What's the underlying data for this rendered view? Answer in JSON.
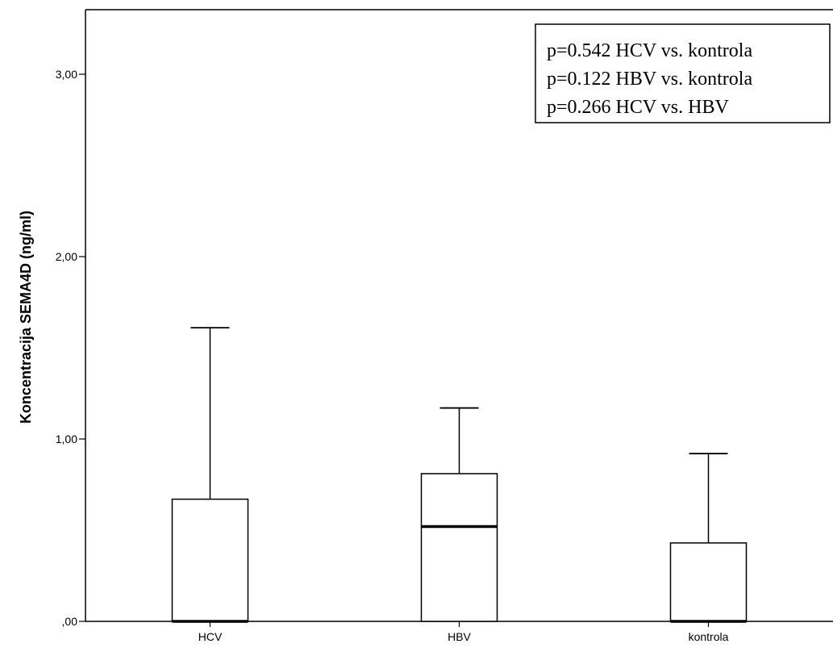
{
  "chart_data": {
    "type": "boxplot",
    "title": "",
    "xlabel": "",
    "ylabel": "Koncentracija SEMA4D (ng/ml)",
    "ylim": [
      0,
      3.3
    ],
    "yticks": [
      0,
      1,
      2,
      3
    ],
    "ytick_labels": [
      ",00",
      "1,00",
      "2,00",
      "3,00"
    ],
    "grid": false,
    "categories": [
      "HCV",
      "HBV",
      "kontrola"
    ],
    "boxes": [
      {
        "category": "HCV",
        "min": 0,
        "q1": 0,
        "median": 0,
        "q3": 0.67,
        "max": 1.61
      },
      {
        "category": "HBV",
        "min": 0,
        "q1": 0,
        "median": 0.52,
        "q3": 0.81,
        "max": 1.17
      },
      {
        "category": "kontrola",
        "min": 0,
        "q1": 0,
        "median": 0,
        "q3": 0.43,
        "max": 0.92
      }
    ],
    "annotation": {
      "placement": "top-right",
      "lines": [
        "p=0.542 HCV vs. kontrola",
        "p=0.122 HBV vs. kontrola",
        "p=0.266 HCV vs. HBV"
      ]
    }
  }
}
